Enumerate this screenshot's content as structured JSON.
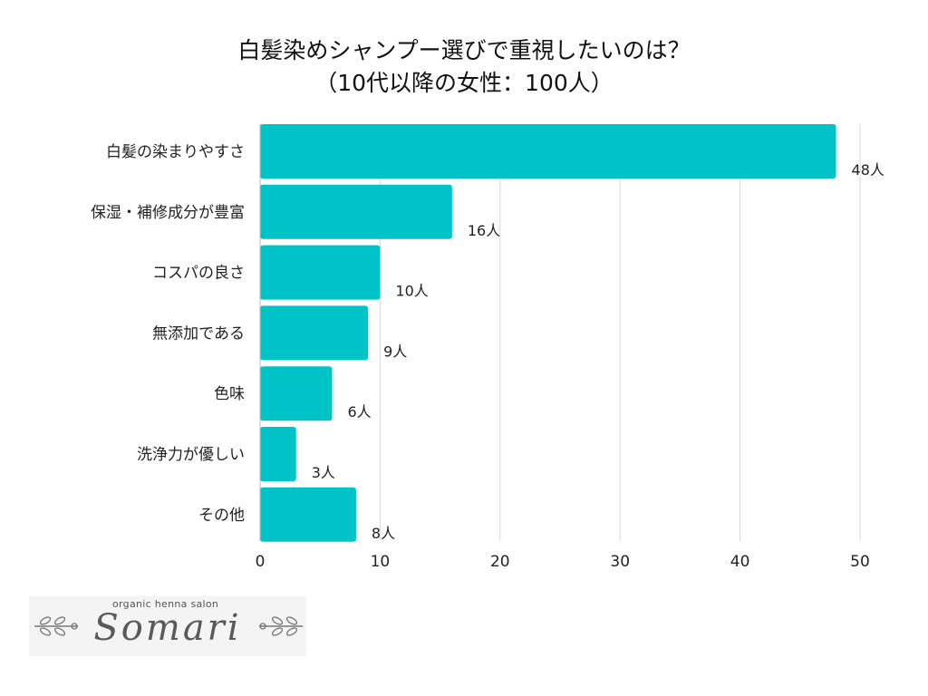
{
  "title_line1": "白髪染めシャンプー選びで重視したいのは？",
  "title_line2": "（10代以降の女性：100人）",
  "chart_data": {
    "type": "bar",
    "orientation": "horizontal",
    "categories": [
      "白髪の染まりやすさ",
      "保湿・補修成分が豊富",
      "コスパの良さ",
      "無添加である",
      "色味",
      "洗浄力が優しい",
      "その他"
    ],
    "values": [
      48,
      16,
      10,
      9,
      6,
      3,
      8
    ],
    "value_labels": [
      "48人",
      "16人",
      "10人",
      "9人",
      "6人",
      "3人",
      "8人"
    ],
    "title": "白髪染めシャンプー選びで重視したいのは？（10代以降の女性：100人）",
    "xlabel": "",
    "ylabel": "",
    "xlim": [
      0,
      50
    ],
    "xticks": [
      "0",
      "10",
      "20",
      "30",
      "40",
      "50"
    ],
    "grid": true,
    "bar_color": "#00c3c8",
    "grid_color": "#d9d9d9"
  },
  "logo": {
    "subtitle": "organic henna salon",
    "name": "Somari",
    "left_ornament": "leaf-branch-icon",
    "right_ornament": "leaf-branch-icon"
  }
}
